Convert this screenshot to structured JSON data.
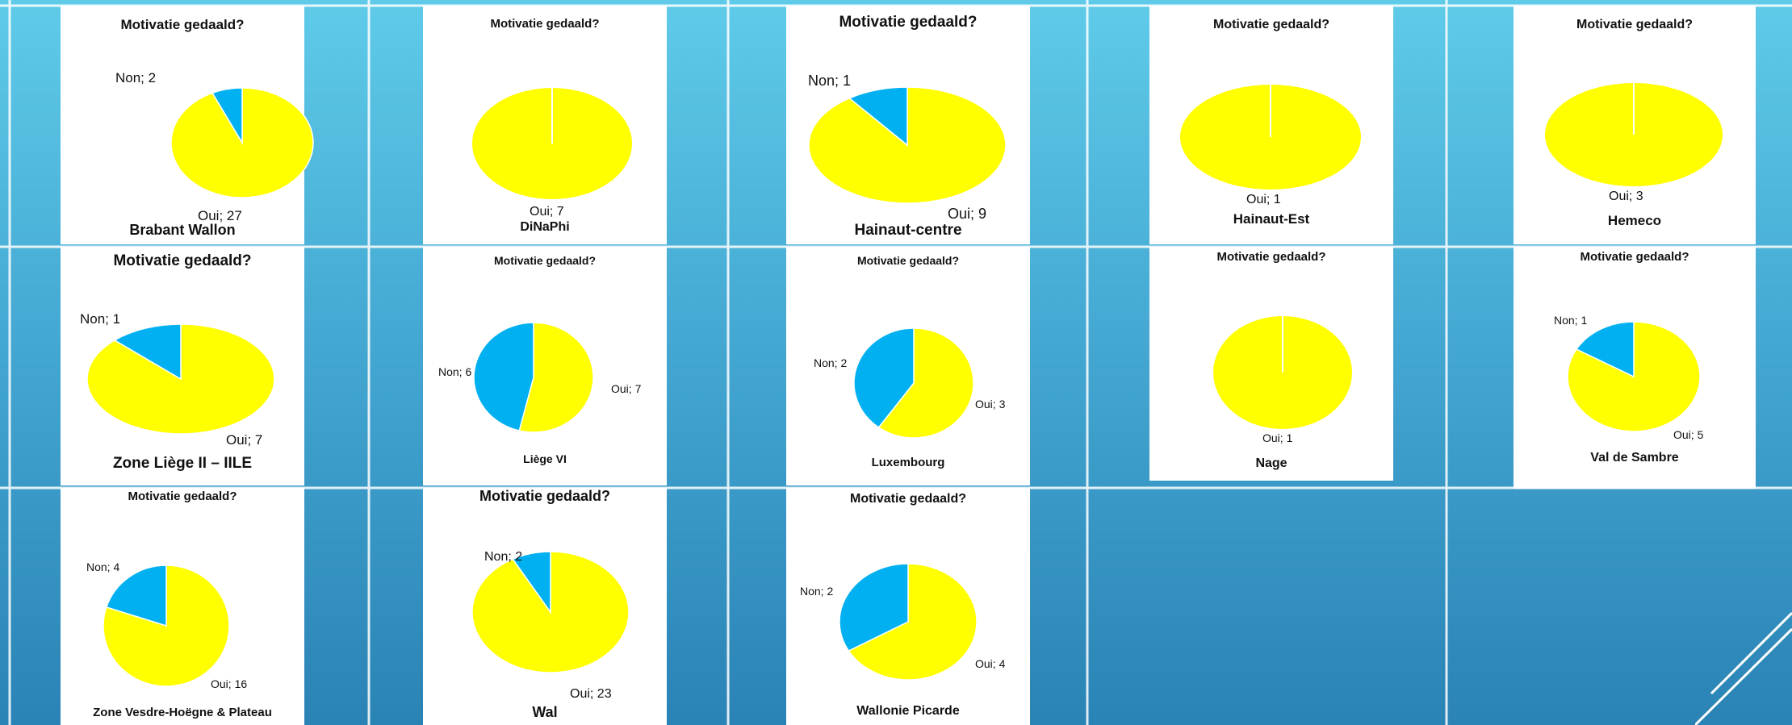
{
  "colors": {
    "oui": "#ffff00",
    "non": "#00b0f0",
    "background_top": "#5fcbe9",
    "background_bottom": "#2a83b5"
  },
  "chart_data": [
    {
      "type": "pie",
      "title": "Motivatie gedaald?",
      "caption": "Brabant Wallon",
      "categories": [
        "Oui",
        "Non"
      ],
      "values": [
        27,
        2
      ]
    },
    {
      "type": "pie",
      "title": "Motivatie gedaald?",
      "caption": "DiNaPhi",
      "categories": [
        "Oui"
      ],
      "values": [
        7
      ]
    },
    {
      "type": "pie",
      "title": "Motivatie gedaald?",
      "caption": "Hainaut-centre",
      "categories": [
        "Oui",
        "Non"
      ],
      "values": [
        9,
        1
      ]
    },
    {
      "type": "pie",
      "title": "Motivatie gedaald?",
      "caption": "Hainaut-Est",
      "categories": [
        "Oui"
      ],
      "values": [
        1
      ]
    },
    {
      "type": "pie",
      "title": "Motivatie gedaald?",
      "caption": "Hemeco",
      "categories": [
        "Oui"
      ],
      "values": [
        3
      ]
    },
    {
      "type": "pie",
      "title": "Motivatie gedaald?",
      "caption": "Zone Liège II – IILE",
      "categories": [
        "Oui",
        "Non"
      ],
      "values": [
        7,
        1
      ]
    },
    {
      "type": "pie",
      "title": "Motivatie gedaald?",
      "caption": "Liège VI",
      "categories": [
        "Oui",
        "Non"
      ],
      "values": [
        7,
        6
      ]
    },
    {
      "type": "pie",
      "title": "Motivatie gedaald?",
      "caption": "Luxembourg",
      "categories": [
        "Oui",
        "Non"
      ],
      "values": [
        3,
        2
      ]
    },
    {
      "type": "pie",
      "title": "Motivatie gedaald?",
      "caption": "Nage",
      "categories": [
        "Oui"
      ],
      "values": [
        1
      ]
    },
    {
      "type": "pie",
      "title": "Motivatie gedaald?",
      "caption": "Val de Sambre",
      "categories": [
        "Oui",
        "Non"
      ],
      "values": [
        5,
        1
      ]
    },
    {
      "type": "pie",
      "title": "Motivatie gedaald?",
      "caption": "Zone Vesdre-Hoëgne & Plateau",
      "categories": [
        "Oui",
        "Non"
      ],
      "values": [
        16,
        4
      ]
    },
    {
      "type": "pie",
      "title": "Motivatie gedaald?",
      "caption": "Wal",
      "categories": [
        "Oui",
        "Non"
      ],
      "values": [
        23,
        2
      ]
    },
    {
      "type": "pie",
      "title": "Motivatie gedaald?",
      "caption": "Wallonie Picarde",
      "categories": [
        "Oui",
        "Non"
      ],
      "values": [
        4,
        2
      ]
    }
  ]
}
